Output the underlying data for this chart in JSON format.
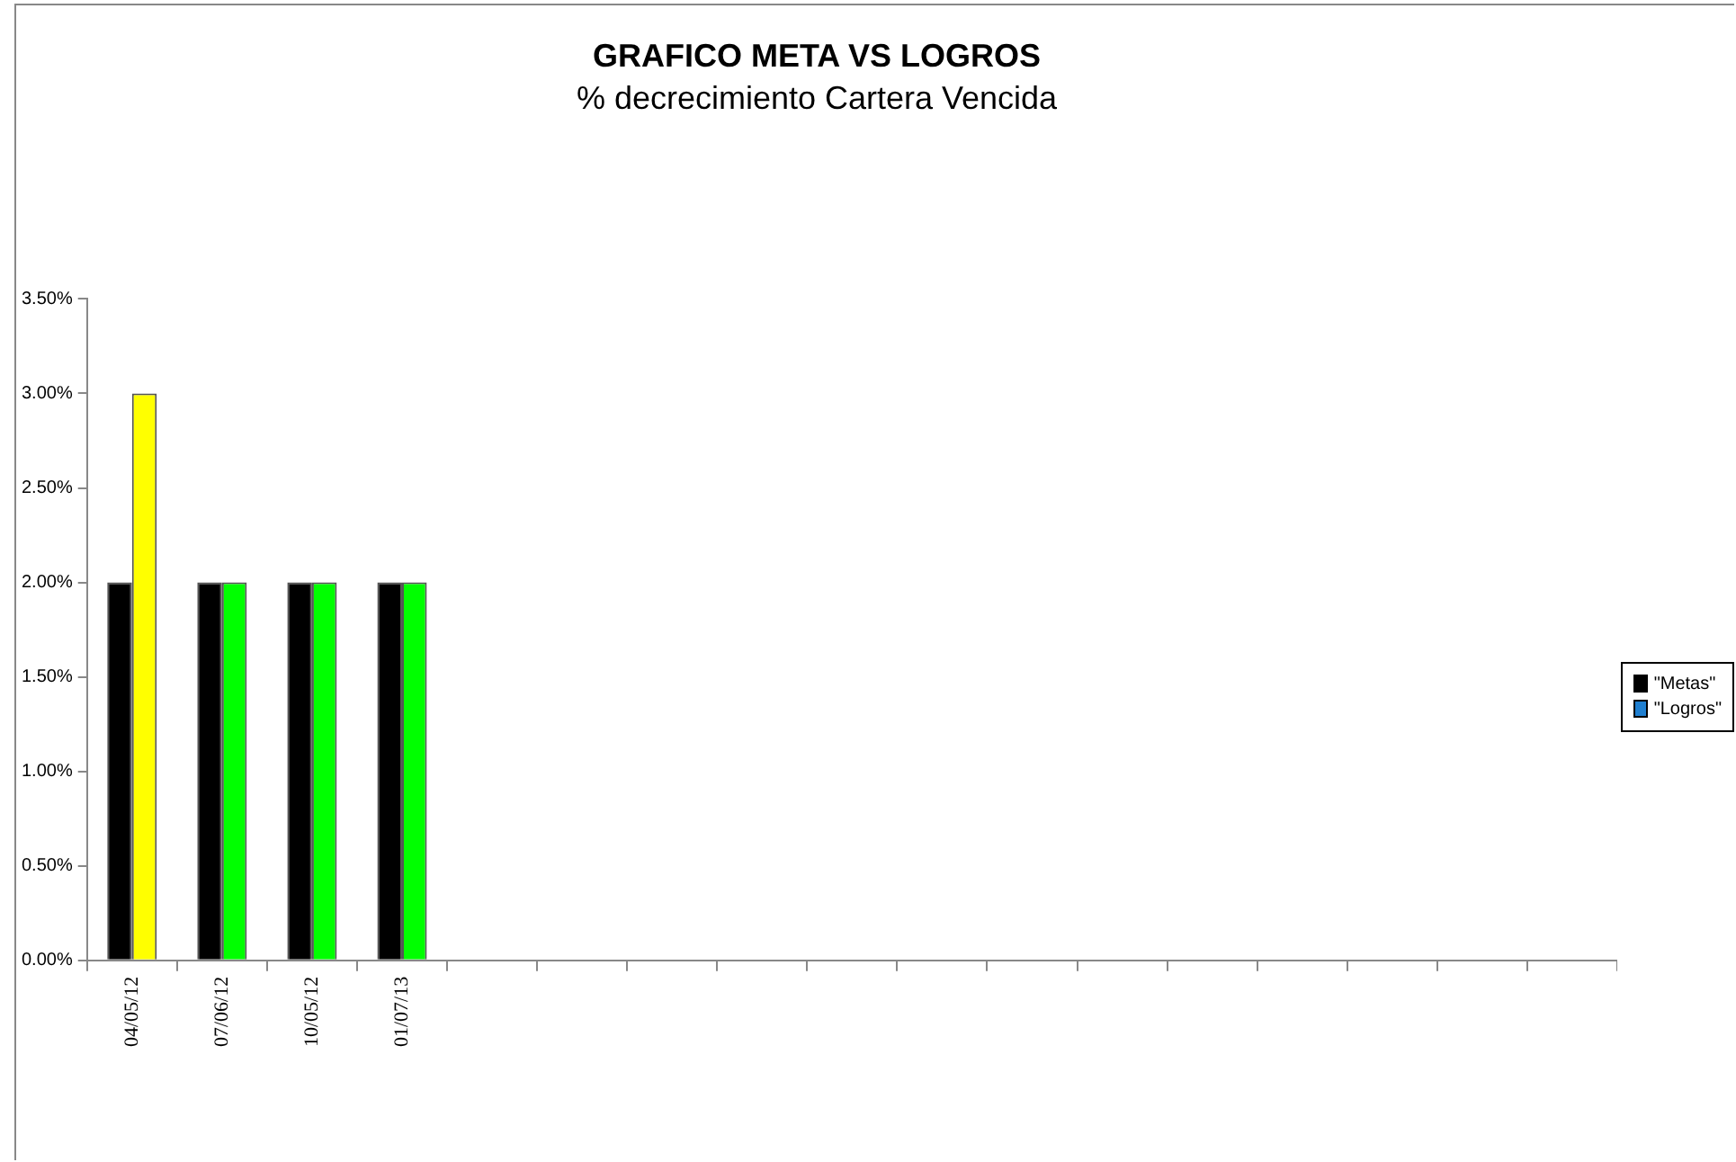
{
  "chart_data": {
    "type": "bar",
    "title": "GRAFICO META VS LOGROS",
    "subtitle": "% decrecimiento Cartera Vencida",
    "categories": [
      "04/05/12",
      "07/06/12",
      "10/05/12",
      "01/07/13",
      null,
      null,
      null,
      null,
      null,
      null,
      null,
      null,
      null,
      null,
      null,
      null,
      null
    ],
    "series": [
      {
        "name": "\"Metas\"",
        "color": "#000000",
        "values": [
          2,
          2,
          2,
          2,
          null,
          null,
          null,
          null,
          null,
          null,
          null,
          null,
          null,
          null,
          null,
          null,
          null
        ]
      },
      {
        "name": "\"Logros\"",
        "color": "#1f7fd0",
        "colors": [
          "#ffff00",
          "#00ff00",
          "#00ff00",
          "#00ff00",
          "#00ff00",
          "#00ff00",
          "#00ff00",
          "#00ff00",
          "#00ff00",
          "#00ff00",
          "#00ff00",
          "#00ff00",
          "#00ff00",
          "#00ff00",
          "#00ff00",
          "#00ff00",
          "#00ff00"
        ],
        "values": [
          3,
          2,
          2,
          2,
          null,
          null,
          null,
          null,
          null,
          null,
          null,
          null,
          null,
          null,
          null,
          null,
          null
        ]
      }
    ],
    "ylim": [
      0,
      3.5
    ],
    "yticks": [
      {
        "value": 0,
        "label": "0.00%"
      },
      {
        "value": 0.5,
        "label": "0.50%"
      },
      {
        "value": 1,
        "label": "1.00%"
      },
      {
        "value": 1.5,
        "label": "1.50%"
      },
      {
        "value": 2,
        "label": "2.00%"
      },
      {
        "value": 2.5,
        "label": "2.50%"
      },
      {
        "value": 3,
        "label": "3.00%"
      },
      {
        "value": 3.5,
        "label": "3.50%"
      }
    ],
    "grid": false,
    "legend": "right"
  }
}
